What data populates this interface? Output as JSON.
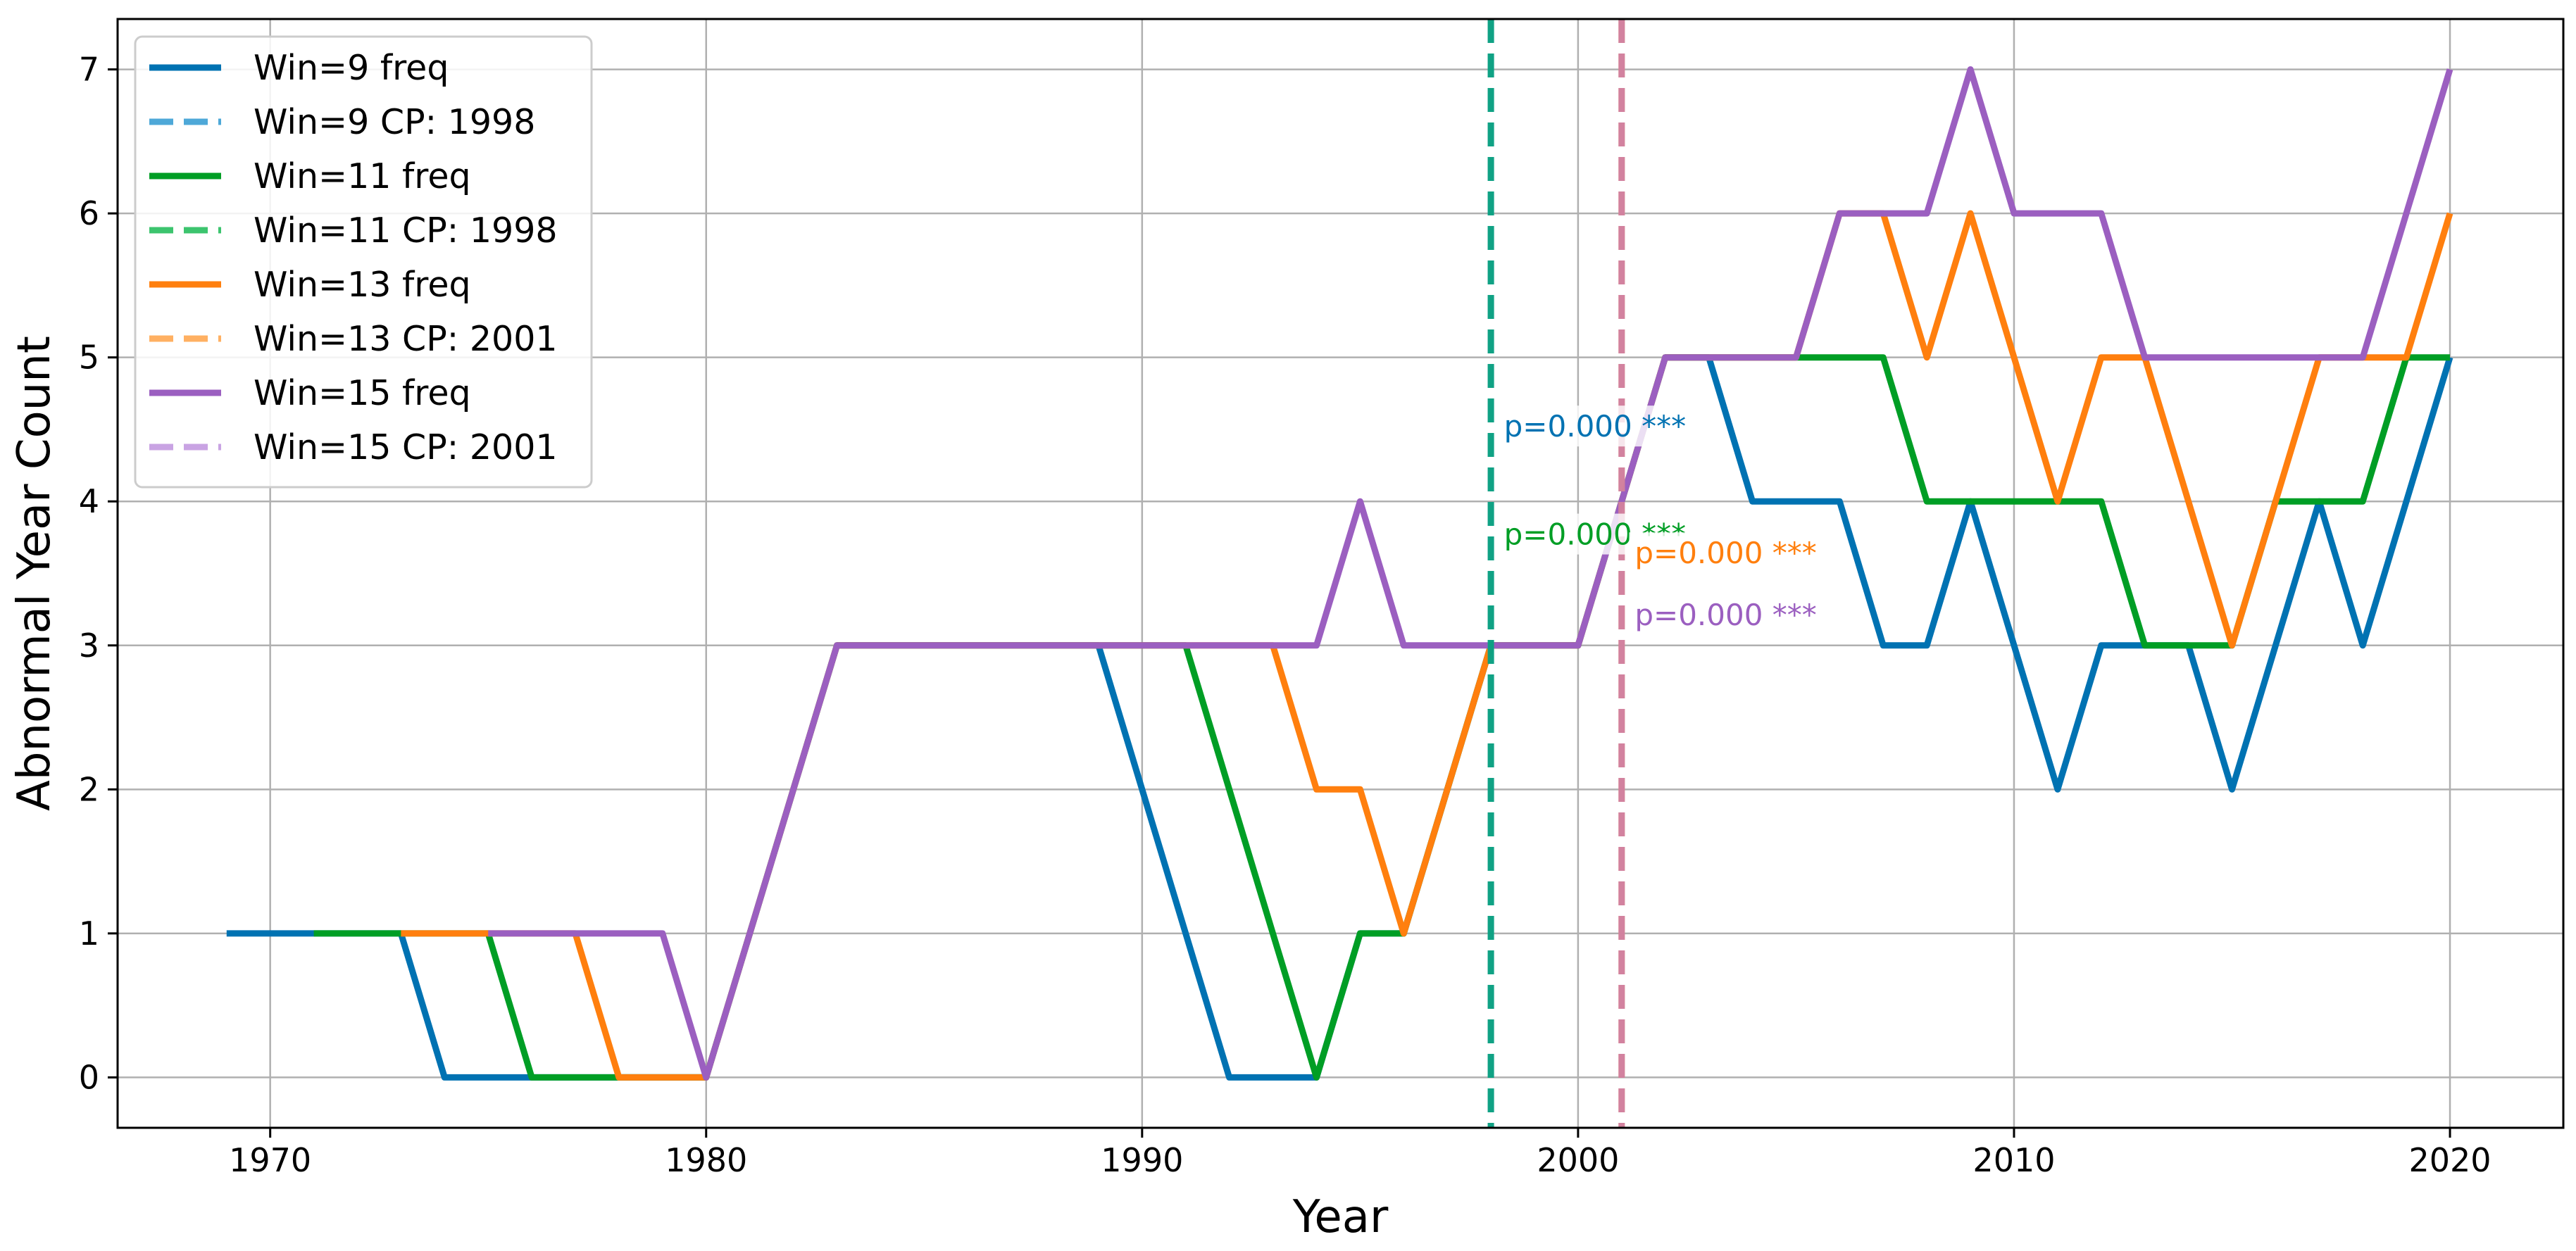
{
  "chart_data": {
    "type": "line",
    "xlabel": "Year",
    "ylabel": "Abnormal Year Count",
    "xlim": [
      1966.5,
      2022.6
    ],
    "ylim": [
      -0.35,
      7.35
    ],
    "xticks": [
      1970,
      1980,
      1990,
      2000,
      2010,
      2020
    ],
    "xtick_labels": [
      "1970",
      "1980",
      "1990",
      "2000",
      "2010",
      "2020"
    ],
    "yticks": [
      0,
      1,
      2,
      3,
      4,
      5,
      6,
      7
    ],
    "ytick_labels": [
      "0",
      "1",
      "2",
      "3",
      "4",
      "5",
      "6",
      "7"
    ],
    "grid": true,
    "legend_position": "upper-left",
    "series": [
      {
        "name": "Win=9 freq",
        "color": "#0072b2",
        "x": [
          1969,
          1970,
          1971,
          1972,
          1973,
          1974,
          1975,
          1976,
          1977,
          1978,
          1979,
          1980,
          1981,
          1982,
          1983,
          1984,
          1985,
          1986,
          1987,
          1988,
          1989,
          1990,
          1991,
          1992,
          1993,
          1994,
          1995,
          1996,
          1997,
          1998,
          1999,
          2000,
          2001,
          2002,
          2003,
          2004,
          2005,
          2006,
          2007,
          2008,
          2009,
          2010,
          2011,
          2012,
          2013,
          2014,
          2015,
          2016,
          2017,
          2018,
          2019,
          2020
        ],
        "values": [
          1,
          1,
          1,
          1,
          1,
          0,
          0,
          0,
          0,
          0,
          0,
          0,
          1,
          2,
          3,
          3,
          3,
          3,
          3,
          3,
          3,
          2,
          1,
          0,
          0,
          0,
          1,
          1,
          2,
          3,
          3,
          3,
          4,
          5,
          5,
          4,
          4,
          4,
          3,
          3,
          4,
          3,
          2,
          3,
          3,
          3,
          2,
          3,
          4,
          3,
          4,
          5
        ]
      },
      {
        "name": "Win=11 freq",
        "color": "#009e25",
        "x": [
          1971,
          1972,
          1973,
          1974,
          1975,
          1976,
          1977,
          1978,
          1979,
          1980,
          1981,
          1982,
          1983,
          1984,
          1985,
          1986,
          1987,
          1988,
          1989,
          1990,
          1991,
          1992,
          1993,
          1994,
          1995,
          1996,
          1997,
          1998,
          1999,
          2000,
          2001,
          2002,
          2003,
          2004,
          2005,
          2006,
          2007,
          2008,
          2009,
          2010,
          2011,
          2012,
          2013,
          2014,
          2015,
          2016,
          2017,
          2018,
          2019,
          2020
        ],
        "values": [
          1,
          1,
          1,
          1,
          1,
          0,
          0,
          0,
          0,
          0,
          1,
          2,
          3,
          3,
          3,
          3,
          3,
          3,
          3,
          3,
          3,
          2,
          1,
          0,
          1,
          1,
          2,
          3,
          3,
          3,
          4,
          5,
          5,
          5,
          5,
          5,
          5,
          4,
          4,
          4,
          4,
          4,
          3,
          3,
          3,
          4,
          4,
          4,
          5,
          5
        ]
      },
      {
        "name": "Win=13 freq",
        "color": "#ff7f0e",
        "x": [
          1973,
          1974,
          1975,
          1976,
          1977,
          1978,
          1979,
          1980,
          1981,
          1982,
          1983,
          1984,
          1985,
          1986,
          1987,
          1988,
          1989,
          1990,
          1991,
          1992,
          1993,
          1994,
          1995,
          1996,
          1997,
          1998,
          1999,
          2000,
          2001,
          2002,
          2003,
          2004,
          2005,
          2006,
          2007,
          2008,
          2009,
          2010,
          2011,
          2012,
          2013,
          2014,
          2015,
          2016,
          2017,
          2018,
          2019,
          2020
        ],
        "values": [
          1,
          1,
          1,
          1,
          1,
          0,
          0,
          0,
          1,
          2,
          3,
          3,
          3,
          3,
          3,
          3,
          3,
          3,
          3,
          3,
          3,
          2,
          2,
          1,
          2,
          3,
          3,
          3,
          4,
          5,
          5,
          5,
          5,
          6,
          6,
          5,
          6,
          5,
          4,
          5,
          5,
          4,
          3,
          4,
          5,
          5,
          5,
          6
        ]
      },
      {
        "name": "Win=15 freq",
        "color": "#9b5fc0",
        "x": [
          1975,
          1976,
          1977,
          1978,
          1979,
          1980,
          1981,
          1982,
          1983,
          1984,
          1985,
          1986,
          1987,
          1988,
          1989,
          1990,
          1991,
          1992,
          1993,
          1994,
          1995,
          1996,
          1997,
          1998,
          1999,
          2000,
          2001,
          2002,
          2003,
          2004,
          2005,
          2006,
          2007,
          2008,
          2009,
          2010,
          2011,
          2012,
          2013,
          2014,
          2015,
          2016,
          2017,
          2018,
          2019,
          2020
        ],
        "values": [
          1,
          1,
          1,
          1,
          1,
          0,
          1,
          2,
          3,
          3,
          3,
          3,
          3,
          3,
          3,
          3,
          3,
          3,
          3,
          3,
          4,
          3,
          3,
          3,
          3,
          3,
          4,
          5,
          5,
          5,
          5,
          6,
          6,
          6,
          7,
          6,
          6,
          6,
          5,
          5,
          5,
          5,
          5,
          5,
          6,
          7
        ]
      }
    ],
    "change_points": [
      {
        "name": "Win=9 CP: 1998",
        "year": 1998,
        "color": "#56b4e9",
        "legend_color": "#4ea8d8"
      },
      {
        "name": "Win=11 CP: 1998",
        "year": 1998,
        "color": "#009e73",
        "legend_color": "#3cc46e"
      },
      {
        "name": "Win=13 CP: 2001",
        "year": 2001,
        "color": "#f8b060",
        "legend_color": "#ffb062"
      },
      {
        "name": "Win=15 CP: 2001",
        "year": 2001,
        "color": "#cc79a7",
        "legend_color": "#c9a3e3"
      }
    ],
    "annotations": [
      {
        "text": "p=0.000 ***",
        "color": "#0072b2",
        "x": 1998.3,
        "y": 4.45
      },
      {
        "text": "p=0.000 ***",
        "color": "#009e25",
        "x": 1998.3,
        "y": 3.7
      },
      {
        "text": "p=0.000 ***",
        "color": "#ff7f0e",
        "x": 2001.3,
        "y": 3.57
      },
      {
        "text": "p=0.000 ***",
        "color": "#9b5fc0",
        "x": 2001.3,
        "y": 3.14
      }
    ],
    "legend": [
      {
        "label": "Win=9 freq",
        "color": "#0072b2",
        "dashed": false
      },
      {
        "label": "Win=9 CP: 1998",
        "color": "#4ea8d8",
        "dashed": true
      },
      {
        "label": "Win=11 freq",
        "color": "#009e25",
        "dashed": false
      },
      {
        "label": "Win=11 CP: 1998",
        "color": "#3cc46e",
        "dashed": true
      },
      {
        "label": "Win=13 freq",
        "color": "#ff7f0e",
        "dashed": false
      },
      {
        "label": "Win=13 CP: 2001",
        "color": "#ffb062",
        "dashed": true
      },
      {
        "label": "Win=15 freq",
        "color": "#9b5fc0",
        "dashed": false
      },
      {
        "label": "Win=15 CP: 2001",
        "color": "#c9a3e3",
        "dashed": true
      }
    ]
  }
}
